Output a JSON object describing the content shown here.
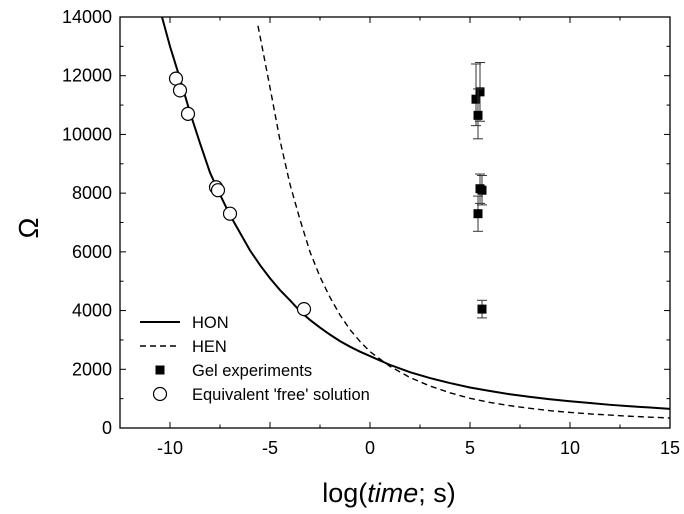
{
  "chart_data": {
    "type": "scatter",
    "xlabel": {
      "prefix": "log(",
      "italic": "time",
      "suffix": "; s)"
    },
    "ylabel": "Ω",
    "xlim": [
      -12.5,
      15
    ],
    "ylim": [
      0,
      14000
    ],
    "x_ticks": [
      -10,
      -5,
      0,
      5,
      10,
      15
    ],
    "x_tick_labels": [
      "-10",
      "-5",
      "0",
      "5",
      "10",
      "15"
    ],
    "y_ticks": [
      0,
      2000,
      4000,
      6000,
      8000,
      10000,
      12000,
      14000
    ],
    "y_tick_labels": [
      "0",
      "2000",
      "4000",
      "6000",
      "8000",
      "10000",
      "12000",
      "14000"
    ],
    "grid": false,
    "legend_position": "bottom-left",
    "series": [
      {
        "name": "HON",
        "kind": "line",
        "style": "solid",
        "color": "#000000",
        "x": [
          -10.4,
          -10,
          -9.5,
          -9,
          -8.5,
          -8,
          -7.5,
          -7,
          -6.5,
          -6,
          -5.5,
          -5,
          -4.5,
          -4,
          -3.5,
          -3,
          -2.5,
          -2,
          -1.5,
          -1,
          -0.5,
          0,
          1,
          2,
          3,
          4,
          5,
          6,
          7,
          8,
          9,
          10,
          11,
          12,
          13,
          14,
          15
        ],
        "y": [
          14000,
          13000,
          11900,
          10750,
          9700,
          8700,
          7950,
          7250,
          6650,
          6050,
          5550,
          5100,
          4700,
          4350,
          3980,
          3680,
          3420,
          3180,
          2960,
          2770,
          2600,
          2450,
          2150,
          1900,
          1700,
          1530,
          1380,
          1260,
          1150,
          1060,
          980,
          910,
          850,
          790,
          740,
          700,
          650
        ]
      },
      {
        "name": "HEN",
        "kind": "line",
        "style": "dashed",
        "color": "#000000",
        "x": [
          -5.6,
          -5,
          -4.5,
          -4,
          -3.5,
          -3,
          -2.5,
          -2,
          -1.5,
          -1,
          -0.5,
          0,
          1,
          2,
          3,
          4,
          5,
          6,
          7,
          8,
          9,
          10,
          11,
          12,
          13,
          14,
          15
        ],
        "y": [
          13700,
          11600,
          9800,
          8300,
          7100,
          6000,
          5150,
          4450,
          3850,
          3350,
          2950,
          2600,
          2100,
          1720,
          1430,
          1200,
          1010,
          870,
          760,
          670,
          590,
          530,
          480,
          440,
          400,
          370,
          340
        ]
      },
      {
        "name": "Gel experiments",
        "kind": "scatter",
        "marker": "filled-square",
        "color": "#000000",
        "x": [
          5.3,
          5.5,
          5.4,
          5.6,
          5.5,
          5.4,
          5.6
        ],
        "y": [
          11200,
          11450,
          10650,
          8100,
          8150,
          7300,
          4050
        ],
        "err_low": [
          900,
          1000,
          800,
          500,
          500,
          600,
          300
        ],
        "err_high": [
          1200,
          1000,
          900,
          500,
          500,
          600,
          300
        ]
      },
      {
        "name": "Equivalent 'free' solution",
        "kind": "scatter",
        "marker": "open-circle",
        "color": "#000000",
        "x": [
          -9.7,
          -9.5,
          -9.1,
          -7.7,
          -7.6,
          -7.0,
          -3.3
        ],
        "y": [
          11900,
          11500,
          10700,
          8200,
          8100,
          7300,
          4050
        ]
      }
    ]
  }
}
